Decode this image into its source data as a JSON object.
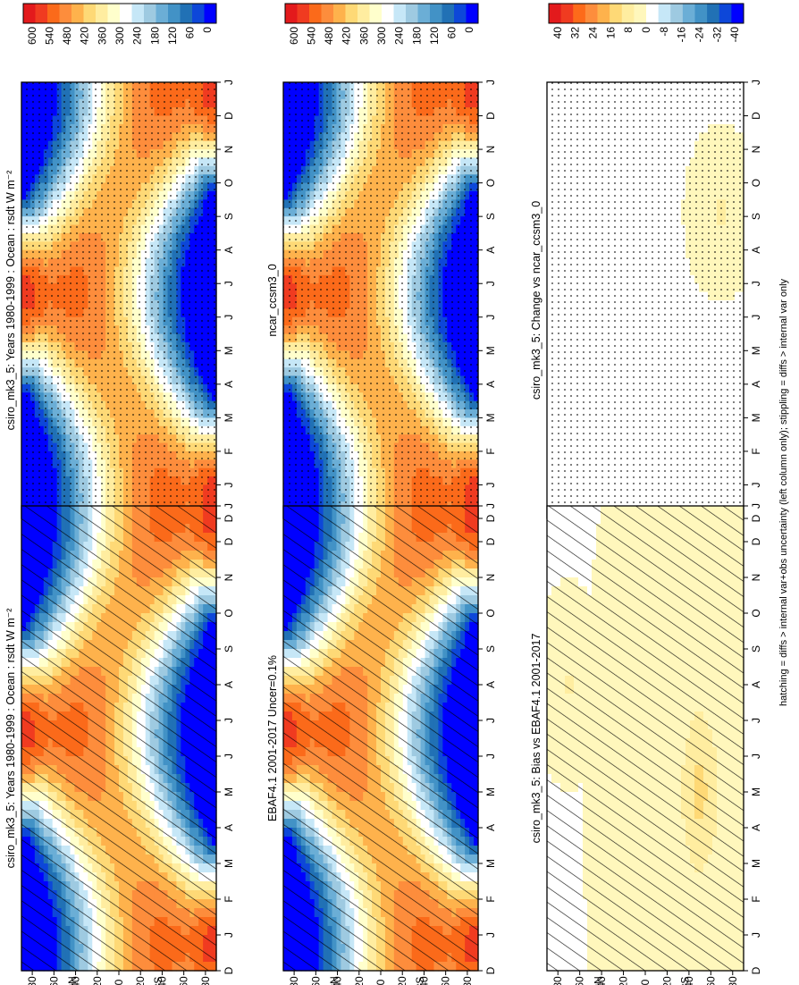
{
  "figure": {
    "orientation": "rotated 90° clockwise (landscape page)",
    "footnote": "hatching = diffs > internal var+obs uncertainty (left column only); stippling = diffs > internal var only"
  },
  "chart_data": [
    {
      "type": "heatmap",
      "title": "csiro_mk3_5: Years 1980-1999 : Ocean : rsdt W m⁻²",
      "x_ticks": [
        "D",
        "J",
        "F",
        "M",
        "A",
        "M",
        "J",
        "J",
        "A",
        "S",
        "O",
        "N",
        "D",
        "J"
      ],
      "y_ticks": [
        "80",
        "60",
        "40",
        "20",
        "0",
        "20",
        "40",
        "60",
        "80"
      ],
      "y_hemisphere_labels": [
        "°N",
        "°S"
      ],
      "colorbar_ticks": [
        "600",
        "540",
        "480",
        "420",
        "360",
        "300",
        "240",
        "180",
        "120",
        "60",
        "0"
      ],
      "colormap": "red-orange-yellow-white-blue (reversed)",
      "overlay": "hatching",
      "field": "insolation"
    },
    {
      "type": "heatmap",
      "title": "csiro_mk3_5: Years 1980-1999 : Ocean : rsdt W m⁻²",
      "x_ticks": [
        "D",
        "J",
        "F",
        "M",
        "A",
        "M",
        "J",
        "J",
        "A",
        "S",
        "O",
        "N",
        "D",
        "J"
      ],
      "y_ticks": [
        "80",
        "60",
        "40",
        "20",
        "0",
        "20",
        "40",
        "60",
        "80"
      ],
      "y_hemisphere_labels": [
        "°N",
        "°S"
      ],
      "colorbar_ticks": [
        "600",
        "540",
        "480",
        "420",
        "360",
        "300",
        "240",
        "180",
        "120",
        "60",
        "0"
      ],
      "colormap": "red-orange-yellow-white-blue (reversed)",
      "overlay": "stippling",
      "field": "insolation"
    },
    {
      "type": "heatmap",
      "title": "EBAF4.1 2001-2017 Uncer=0.1%",
      "x_ticks": [
        "D",
        "J",
        "F",
        "M",
        "A",
        "M",
        "J",
        "J",
        "A",
        "S",
        "O",
        "N",
        "D",
        "J"
      ],
      "y_ticks": [
        "80",
        "60",
        "40",
        "20",
        "0",
        "20",
        "40",
        "60",
        "80"
      ],
      "y_hemisphere_labels": [
        "°N",
        "°S"
      ],
      "colorbar_ticks": [
        "600",
        "540",
        "480",
        "420",
        "360",
        "300",
        "240",
        "180",
        "120",
        "60",
        "0"
      ],
      "colormap": "red-orange-yellow-white-blue (reversed)",
      "overlay": "hatching",
      "field": "insolation"
    },
    {
      "type": "heatmap",
      "title": "ncar_ccsm3_0",
      "x_ticks": [
        "D",
        "J",
        "F",
        "M",
        "A",
        "M",
        "J",
        "J",
        "A",
        "S",
        "O",
        "N",
        "D",
        "J"
      ],
      "y_ticks": [
        "80",
        "60",
        "40",
        "20",
        "0",
        "20",
        "40",
        "60",
        "80"
      ],
      "y_hemisphere_labels": [
        "°N",
        "°S"
      ],
      "colorbar_ticks": [
        "600",
        "540",
        "480",
        "420",
        "360",
        "300",
        "240",
        "180",
        "120",
        "60",
        "0"
      ],
      "colormap": "red-orange-yellow-white-blue (reversed)",
      "overlay": "stippling",
      "field": "insolation"
    },
    {
      "type": "heatmap",
      "title": "csiro_mk3_5: Bias vs EBAF4.1 2001-2017",
      "x_ticks": [
        "D",
        "J",
        "F",
        "M",
        "A",
        "M",
        "J",
        "J",
        "A",
        "S",
        "O",
        "N",
        "D",
        "J"
      ],
      "y_ticks": [
        "80",
        "60",
        "40",
        "20",
        "0",
        "20",
        "40",
        "60",
        "80"
      ],
      "y_hemisphere_labels": [
        "°N",
        "°S"
      ],
      "colorbar_ticks": [
        "40",
        "32",
        "24",
        "16",
        "8",
        "0",
        "-8",
        "-16",
        "-24",
        "-32",
        "-40"
      ],
      "colormap": "diverging red-white-blue",
      "overlay": "hatching",
      "field": "bias"
    },
    {
      "type": "heatmap",
      "title": "csiro_mk3_5: Change vs ncar_ccsm3_0",
      "x_ticks": [
        "D",
        "J",
        "F",
        "M",
        "A",
        "M",
        "J",
        "J",
        "A",
        "S",
        "O",
        "N",
        "D",
        "J"
      ],
      "y_ticks": [
        "80",
        "60",
        "40",
        "20",
        "0",
        "20",
        "40",
        "60",
        "80"
      ],
      "y_hemisphere_labels": [
        "°N",
        "°S"
      ],
      "colorbar_ticks": [
        "40",
        "32",
        "24",
        "16",
        "8",
        "0",
        "-8",
        "-16",
        "-24",
        "-32",
        "-40"
      ],
      "colormap": "diverging red-white-blue",
      "overlay": "stippling",
      "field": "change"
    }
  ],
  "colors": {
    "warm_scale": [
      "#e31a1c",
      "#f03b20",
      "#fb6a1a",
      "#fd8d3c",
      "#feb24c",
      "#fed976",
      "#ffeda0",
      "#ffffcc",
      "#ffffff",
      "#c6e7f7",
      "#9ecae1",
      "#6baed6",
      "#4292c6",
      "#2171b5",
      "#0d47d9",
      "#0000ff"
    ],
    "diff_scale": [
      "#e31a1c",
      "#f03b20",
      "#fd6a1a",
      "#fd8d3c",
      "#feb24c",
      "#fed976",
      "#ffeda0",
      "#fff7bc",
      "#ffffff",
      "#c6e7f7",
      "#9ecae1",
      "#6baed6",
      "#4292c6",
      "#2171b5",
      "#0d47d9",
      "#0000ff"
    ]
  }
}
